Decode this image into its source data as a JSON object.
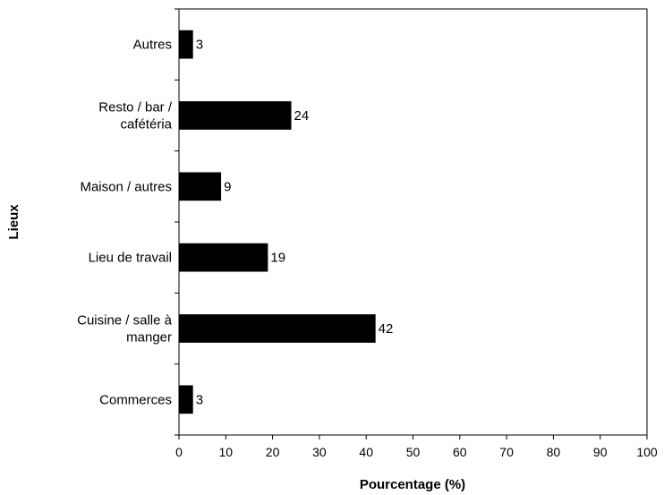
{
  "chart_data": {
    "type": "bar",
    "orientation": "horizontal",
    "title": "",
    "xlabel": "Pourcentage (%)",
    "ylabel": "Lieux",
    "xlim": [
      0,
      100
    ],
    "x_ticks": [
      0,
      10,
      20,
      30,
      40,
      50,
      60,
      70,
      80,
      90,
      100
    ],
    "categories": [
      [
        "Autres"
      ],
      [
        "Resto / bar /",
        "cafétéria"
      ],
      [
        "Maison / autres"
      ],
      [
        "Lieu de travail"
      ],
      [
        "Cuisine / salle à",
        "manger"
      ],
      [
        "Commerces"
      ]
    ],
    "values": [
      3,
      24,
      9,
      19,
      42,
      3
    ],
    "data_labels": [
      "3",
      "24",
      "9",
      "19",
      "42",
      "3"
    ],
    "bar_color": "#000000",
    "grid": false,
    "legend": "none"
  }
}
